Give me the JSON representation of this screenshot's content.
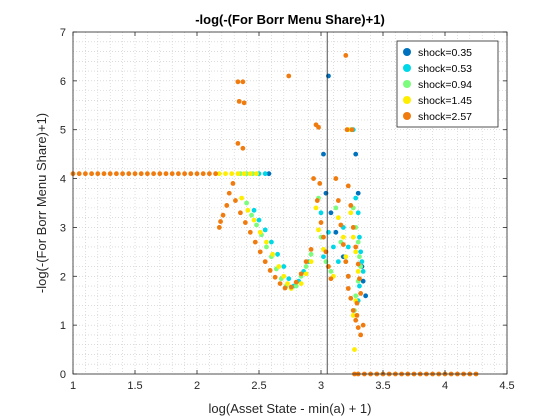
{
  "chart_data": {
    "type": "scatter",
    "title": "-log(-(For Borr Menu Share)+1)",
    "xlabel": "log(Asset State - min(a) + 1)",
    "ylabel": "-log(-(For Borr Menu Share)+1)",
    "xlim": [
      1,
      4.5
    ],
    "ylim": [
      0,
      7
    ],
    "xticks": [
      1,
      1.5,
      2,
      2.5,
      3,
      3.5,
      4,
      4.5
    ],
    "yticks": [
      0,
      1,
      2,
      3,
      4,
      5,
      6,
      7
    ],
    "xtick_labels": [
      "1",
      "1.5",
      "2",
      "2.5",
      "3",
      "3.5",
      "4",
      "4.5"
    ],
    "ytick_labels": [
      "0",
      "1",
      "2",
      "3",
      "4",
      "5",
      "6",
      "7"
    ],
    "grid": "minor-dotted",
    "legend_position": "top-right",
    "reference_line_x": 3.05,
    "series": [
      {
        "name": "shock=0.35",
        "color": "#0072BD",
        "points": [
          [
            2.58,
            4.1
          ],
          [
            3.06,
            6.1
          ],
          [
            3.02,
            4.5
          ],
          [
            3.04,
            3.7
          ],
          [
            3.08,
            3.3
          ],
          [
            3.12,
            2.9
          ],
          [
            3.18,
            2.4
          ],
          [
            3.22,
            2.0
          ],
          [
            3.28,
            4.5
          ],
          [
            3.3,
            3.7
          ],
          [
            3.33,
            2.2
          ],
          [
            3.34,
            1.9
          ],
          [
            3.36,
            1.6
          ]
        ]
      },
      {
        "name": "shock=0.53",
        "color": "#00D8E8",
        "points": [
          [
            2.5,
            4.1
          ],
          [
            2.55,
            4.1
          ],
          [
            2.46,
            3.35
          ],
          [
            2.5,
            3.15
          ],
          [
            2.55,
            2.95
          ],
          [
            2.6,
            2.7
          ],
          [
            2.65,
            2.45
          ],
          [
            2.7,
            2.2
          ],
          [
            2.74,
            1.95
          ],
          [
            2.78,
            1.8
          ],
          [
            2.82,
            1.9
          ],
          [
            2.86,
            2.1
          ],
          [
            2.9,
            2.3
          ],
          [
            3.0,
            3.3
          ],
          [
            3.02,
            2.4
          ],
          [
            3.06,
            2.9
          ],
          [
            3.1,
            2.6
          ],
          [
            3.14,
            2.3
          ],
          [
            3.18,
            3.0
          ],
          [
            3.22,
            2.6
          ],
          [
            3.26,
            5.0
          ],
          [
            3.28,
            3.6
          ],
          [
            3.3,
            3.3
          ],
          [
            3.31,
            2.8
          ],
          [
            3.32,
            2.5
          ],
          [
            3.33,
            2.3
          ],
          [
            3.34,
            2.1
          ],
          [
            3.31,
            1.8
          ],
          [
            3.3,
            1.5
          ]
        ]
      },
      {
        "name": "shock=0.94",
        "color": "#7CFC7C",
        "points": [
          [
            2.35,
            4.1
          ],
          [
            2.4,
            4.1
          ],
          [
            2.45,
            4.1
          ],
          [
            2.4,
            3.5
          ],
          [
            2.44,
            3.25
          ],
          [
            2.48,
            3.05
          ],
          [
            2.52,
            2.85
          ],
          [
            2.56,
            2.6
          ],
          [
            2.6,
            2.4
          ],
          [
            2.64,
            2.15
          ],
          [
            2.68,
            1.95
          ],
          [
            2.72,
            1.8
          ],
          [
            2.8,
            1.8
          ],
          [
            2.84,
            2.0
          ],
          [
            2.88,
            2.2
          ],
          [
            2.92,
            2.45
          ],
          [
            2.98,
            3.6
          ],
          [
            3.0,
            2.8
          ],
          [
            3.04,
            2.3
          ],
          [
            3.08,
            2.1
          ],
          [
            3.12,
            3.4
          ],
          [
            3.16,
            2.7
          ],
          [
            3.2,
            2.3
          ],
          [
            3.24,
            5.0
          ],
          [
            3.26,
            3.4
          ],
          [
            3.28,
            3.0
          ],
          [
            3.3,
            2.7
          ],
          [
            3.31,
            2.4
          ],
          [
            3.32,
            2.2
          ],
          [
            3.3,
            1.9
          ],
          [
            3.28,
            1.6
          ],
          [
            3.27,
            1.3
          ]
        ]
      },
      {
        "name": "shock=1.45",
        "color": "#FFEE00",
        "points": [
          [
            2.18,
            4.1
          ],
          [
            2.23,
            4.1
          ],
          [
            2.28,
            4.1
          ],
          [
            2.33,
            4.1
          ],
          [
            2.38,
            4.1
          ],
          [
            2.43,
            4.1
          ],
          [
            2.48,
            4.1
          ],
          [
            2.36,
            3.6
          ],
          [
            2.41,
            3.35
          ],
          [
            2.46,
            3.15
          ],
          [
            2.51,
            2.9
          ],
          [
            2.56,
            2.7
          ],
          [
            2.61,
            2.45
          ],
          [
            2.66,
            2.2
          ],
          [
            2.7,
            2.0
          ],
          [
            2.73,
            1.85
          ],
          [
            2.76,
            1.75
          ],
          [
            2.84,
            1.85
          ],
          [
            2.88,
            2.05
          ],
          [
            2.92,
            2.3
          ],
          [
            2.96,
            3.4
          ],
          [
            2.98,
            2.95
          ],
          [
            3.02,
            2.55
          ],
          [
            3.06,
            2.2
          ],
          [
            3.1,
            2.0
          ],
          [
            3.14,
            3.2
          ],
          [
            3.18,
            2.8
          ],
          [
            3.2,
            2.4
          ],
          [
            3.22,
            5.0
          ],
          [
            3.24,
            3.3
          ],
          [
            3.26,
            2.8
          ],
          [
            3.28,
            2.5
          ],
          [
            3.3,
            2.1
          ],
          [
            3.28,
            1.5
          ],
          [
            3.26,
            1.2
          ],
          [
            3.27,
            0.5
          ]
        ]
      },
      {
        "name": "shock=2.57",
        "color": "#F07C10",
        "points": [
          [
            1.0,
            4.1
          ],
          [
            1.05,
            4.1
          ],
          [
            1.1,
            4.1
          ],
          [
            1.15,
            4.1
          ],
          [
            1.2,
            4.1
          ],
          [
            1.25,
            4.1
          ],
          [
            1.3,
            4.1
          ],
          [
            1.35,
            4.1
          ],
          [
            1.4,
            4.1
          ],
          [
            1.45,
            4.1
          ],
          [
            1.5,
            4.1
          ],
          [
            1.55,
            4.1
          ],
          [
            1.6,
            4.1
          ],
          [
            1.65,
            4.1
          ],
          [
            1.7,
            4.1
          ],
          [
            1.75,
            4.1
          ],
          [
            1.8,
            4.1
          ],
          [
            1.85,
            4.1
          ],
          [
            1.9,
            4.1
          ],
          [
            1.95,
            4.1
          ],
          [
            2.0,
            4.1
          ],
          [
            2.05,
            4.1
          ],
          [
            2.1,
            4.1
          ],
          [
            2.15,
            4.1
          ],
          [
            2.33,
            5.98
          ],
          [
            2.37,
            5.98
          ],
          [
            2.34,
            5.58
          ],
          [
            2.38,
            5.55
          ],
          [
            2.74,
            6.1
          ],
          [
            2.37,
            4.62
          ],
          [
            2.33,
            4.72
          ],
          [
            2.18,
            3.0
          ],
          [
            2.19,
            3.12
          ],
          [
            2.21,
            3.25
          ],
          [
            2.24,
            3.45
          ],
          [
            2.26,
            3.7
          ],
          [
            2.29,
            3.9
          ],
          [
            2.31,
            3.55
          ],
          [
            2.35,
            3.3
          ],
          [
            2.39,
            3.1
          ],
          [
            2.43,
            2.9
          ],
          [
            2.47,
            2.7
          ],
          [
            2.51,
            2.5
          ],
          [
            2.55,
            2.3
          ],
          [
            2.59,
            2.12
          ],
          [
            2.63,
            1.98
          ],
          [
            2.67,
            1.85
          ],
          [
            2.71,
            1.76
          ],
          [
            2.76,
            1.78
          ],
          [
            2.8,
            1.88
          ],
          [
            2.84,
            2.05
          ],
          [
            2.88,
            2.3
          ],
          [
            2.92,
            2.55
          ],
          [
            2.96,
            5.1
          ],
          [
            2.98,
            5.05
          ],
          [
            2.94,
            4.0
          ],
          [
            2.99,
            3.9
          ],
          [
            2.97,
            3.55
          ],
          [
            3.0,
            3.1
          ],
          [
            3.02,
            2.8
          ],
          [
            3.04,
            2.5
          ],
          [
            3.06,
            2.2
          ],
          [
            3.08,
            1.95
          ],
          [
            3.12,
            4.0
          ],
          [
            3.14,
            3.55
          ],
          [
            3.16,
            3.05
          ],
          [
            3.18,
            2.65
          ],
          [
            3.2,
            2.3
          ],
          [
            3.22,
            2.0
          ],
          [
            3.2,
            6.52
          ],
          [
            3.21,
            5.0
          ],
          [
            3.25,
            5.0
          ],
          [
            3.22,
            3.85
          ],
          [
            3.24,
            3.45
          ],
          [
            3.26,
            3.0
          ],
          [
            3.28,
            2.6
          ],
          [
            3.3,
            2.25
          ],
          [
            3.31,
            1.95
          ],
          [
            3.22,
            1.75
          ],
          [
            3.24,
            1.55
          ],
          [
            3.26,
            1.3
          ],
          [
            3.28,
            1.1
          ],
          [
            3.3,
            0.95
          ],
          [
            3.32,
            0.8
          ],
          [
            3.29,
            1.45
          ],
          [
            3.29,
            1.2
          ],
          [
            3.32,
            1.65
          ],
          [
            3.34,
            1.0
          ],
          [
            3.27,
            0.0
          ],
          [
            3.3,
            0.0
          ],
          [
            3.35,
            0.0
          ],
          [
            3.4,
            0.0
          ],
          [
            3.45,
            0.0
          ],
          [
            3.5,
            0.0
          ],
          [
            3.55,
            0.0
          ],
          [
            3.6,
            0.0
          ],
          [
            3.65,
            0.0
          ],
          [
            3.7,
            0.0
          ],
          [
            3.75,
            0.0
          ],
          [
            3.8,
            0.0
          ],
          [
            3.85,
            0.0
          ],
          [
            3.9,
            0.0
          ],
          [
            3.95,
            0.0
          ],
          [
            4.0,
            0.0
          ],
          [
            4.05,
            0.0
          ],
          [
            4.1,
            0.0
          ],
          [
            4.15,
            0.0
          ],
          [
            4.2,
            0.0
          ],
          [
            4.25,
            0.0
          ]
        ]
      }
    ]
  }
}
